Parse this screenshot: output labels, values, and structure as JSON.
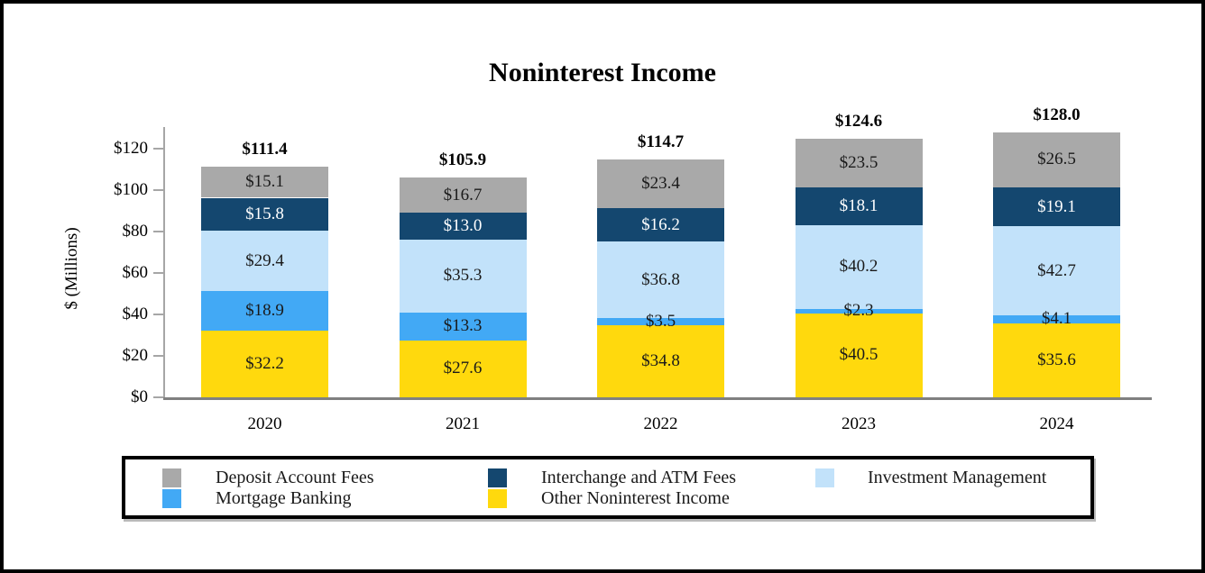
{
  "title": "Noninterest Income",
  "chart_data": {
    "type": "bar",
    "stacked": true,
    "title": "Noninterest Income",
    "ylabel": "$ (Millions)",
    "ylim": [
      0,
      130
    ],
    "grid": false,
    "legend_position": "bottom",
    "y_ticks": [
      {
        "value": 0,
        "label": "$0"
      },
      {
        "value": 20,
        "label": "$20"
      },
      {
        "value": 40,
        "label": "$40"
      },
      {
        "value": 60,
        "label": "$60"
      },
      {
        "value": 80,
        "label": "$80"
      },
      {
        "value": 100,
        "label": "$100"
      },
      {
        "value": 120,
        "label": "$120"
      }
    ],
    "categories": [
      "2020",
      "2021",
      "2022",
      "2023",
      "2024"
    ],
    "stack_order": "bottom-to-top",
    "series": [
      {
        "name": "Other Noninterest Income",
        "color": "#FFD90D",
        "label_color": "#1a1a1a",
        "values": [
          32.2,
          27.6,
          34.8,
          40.5,
          35.6
        ]
      },
      {
        "name": "Mortgage Banking",
        "color": "#42A9F5",
        "label_color": "#1a1a1a",
        "values": [
          18.9,
          13.3,
          3.5,
          2.3,
          4.1
        ]
      },
      {
        "name": "Investment Management",
        "color": "#C2E2FA",
        "label_color": "#1a1a1a",
        "values": [
          29.4,
          35.3,
          36.8,
          40.2,
          42.7
        ]
      },
      {
        "name": "Interchange and ATM Fees",
        "color": "#14476F",
        "label_color": "#FFFFFF",
        "values": [
          15.8,
          13.0,
          16.2,
          18.1,
          19.1
        ]
      },
      {
        "name": "Deposit Account Fees",
        "color": "#A9A9A9",
        "label_color": "#1a1a1a",
        "values": [
          15.1,
          16.7,
          23.4,
          23.5,
          26.5
        ]
      }
    ],
    "bar_totals": [
      "$111.4",
      "$105.9",
      "$114.7",
      "$124.6",
      "$128.0"
    ]
  },
  "legend": {
    "columns": [
      [
        {
          "label": "Deposit Account Fees",
          "color": "#A9A9A9"
        },
        {
          "label": "Mortgage Banking",
          "color": "#42A9F5"
        }
      ],
      [
        {
          "label": "Interchange and ATM Fees",
          "color": "#14476F"
        },
        {
          "label": "Other Noninterest Income",
          "color": "#FFD90D"
        }
      ],
      [
        {
          "label": "Investment Management",
          "color": "#C2E2FA"
        }
      ]
    ]
  }
}
